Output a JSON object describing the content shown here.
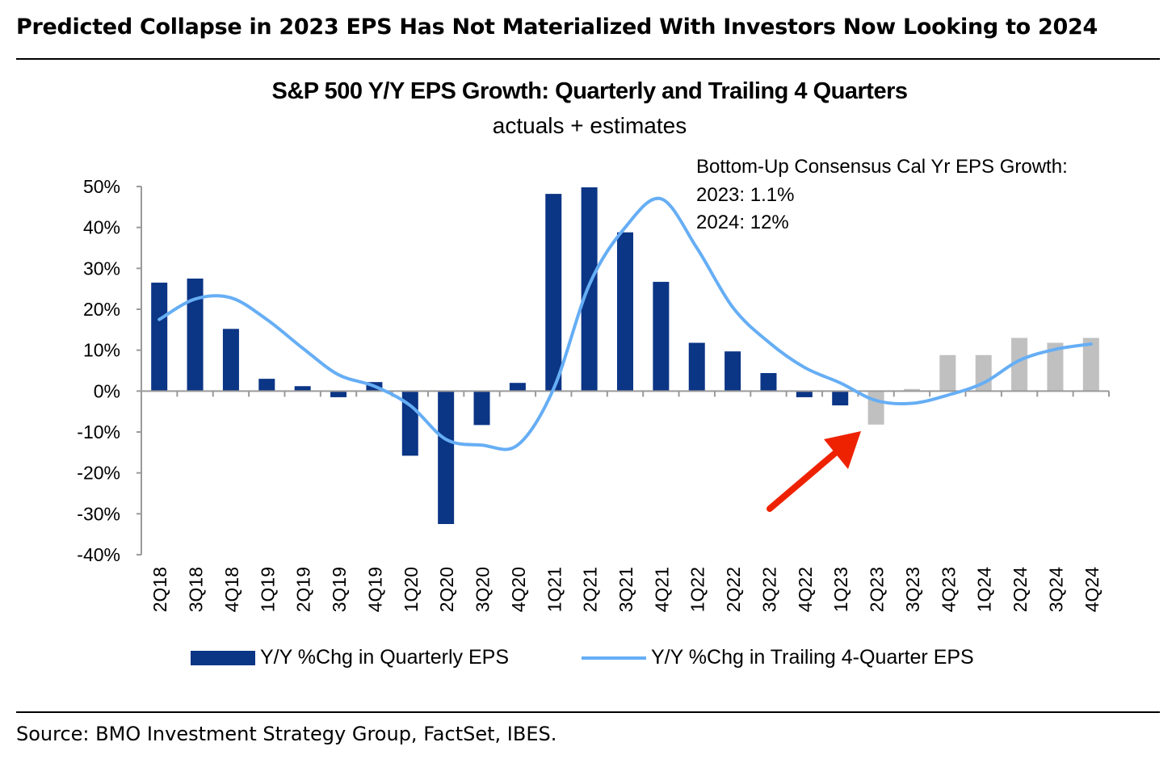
{
  "headline": "Predicted Collapse in 2023 EPS Has Not Materialized With Investors Now Looking to 2024",
  "source": "Source: BMO Investment Strategy Group, FactSet, IBES.",
  "chart_data": {
    "type": "bar",
    "title": "S&P 500 Y/Y EPS Growth: Quarterly and Trailing 4 Quarters",
    "subtitle": "actuals + estimates",
    "annotation": {
      "heading": "Bottom-Up Consensus Cal Yr EPS Growth:",
      "line1": "2023: 1.1%",
      "line2": "2024: 12%"
    },
    "categories": [
      "2Q18",
      "3Q18",
      "4Q18",
      "1Q19",
      "2Q19",
      "3Q19",
      "4Q19",
      "1Q20",
      "2Q20",
      "3Q20",
      "4Q20",
      "1Q21",
      "2Q21",
      "3Q21",
      "4Q21",
      "1Q22",
      "2Q22",
      "3Q22",
      "4Q22",
      "1Q23",
      "2Q23",
      "3Q23",
      "4Q23",
      "1Q24",
      "2Q24",
      "3Q24",
      "4Q24"
    ],
    "ylim": [
      -40,
      50
    ],
    "yticks": [
      "-40%",
      "-30%",
      "-20%",
      "-10%",
      "0%",
      "10%",
      "20%",
      "30%",
      "40%",
      "50%"
    ],
    "ytick_values": [
      -40,
      -30,
      -20,
      -10,
      0,
      10,
      20,
      30,
      40,
      50
    ],
    "estimate_start_index": 20,
    "series": [
      {
        "name": "Y/Y %Chg in Quarterly EPS",
        "kind": "bar",
        "color": "#0b3585",
        "estimate_color": "#c0c0c0",
        "values": [
          26.5,
          27.5,
          15.2,
          3.0,
          1.2,
          -1.5,
          2.2,
          -15.8,
          -32.5,
          -8.3,
          2.0,
          48.2,
          49.8,
          38.8,
          26.7,
          11.8,
          9.7,
          4.4,
          -1.5,
          -3.5,
          -8.2,
          0.5,
          8.8,
          8.8,
          13.0,
          11.8,
          13.0
        ]
      },
      {
        "name": "Y/Y %Chg in Trailing 4-Quarter EPS",
        "kind": "line",
        "color": "#66aef5",
        "values": [
          17.5,
          22.5,
          22.8,
          17.5,
          10.5,
          4.0,
          1.2,
          -3.5,
          -11.8,
          -13.2,
          -13.2,
          0.5,
          26.0,
          40.0,
          47.0,
          35.0,
          20.5,
          12.0,
          5.8,
          2.0,
          -2.3,
          -3.0,
          -1.0,
          2.0,
          7.5,
          10.2,
          11.5
        ]
      }
    ],
    "arrow_color": "#ee2200"
  }
}
